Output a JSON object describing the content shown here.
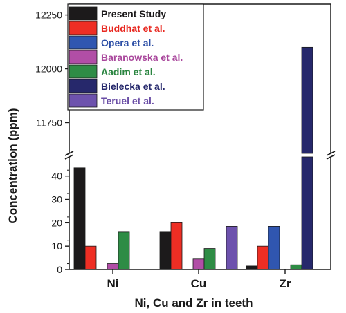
{
  "chart_data": {
    "type": "bar",
    "xlabel": "Ni, Cu and Zr in teeth",
    "ylabel": "Concentration (ppm)",
    "categories": [
      "Ni",
      "Cu",
      "Zr"
    ],
    "y_axis_break": {
      "lower_range": [
        0,
        47
      ],
      "upper_range": [
        11620,
        12300
      ],
      "lower_ticks": [
        0,
        10,
        20,
        30,
        40
      ],
      "upper_ticks": [
        11750,
        12000,
        12250
      ]
    },
    "legend_position": "top-center",
    "grid": false,
    "series": [
      {
        "name": "Present Study",
        "color": "#1c1a1b",
        "text_color": "#1c1a1b",
        "values": [
          43.5,
          16,
          1.5
        ]
      },
      {
        "name": "Buddhat et al.",
        "color": "#ee2e24",
        "text_color": "#e8271f",
        "values": [
          10,
          20,
          10
        ]
      },
      {
        "name": "Opera et al.",
        "color": "#3056b0",
        "text_color": "#2d4fa6",
        "values": [
          null,
          null,
          18.5
        ]
      },
      {
        "name": "Baranowska et al.",
        "color": "#b14ea6",
        "text_color": "#a9479c",
        "values": [
          2.5,
          4.5,
          null
        ]
      },
      {
        "name": "Aadim et al.",
        "color": "#2e8c45",
        "text_color": "#2a8540",
        "values": [
          16,
          9,
          2
        ]
      },
      {
        "name": "Bielecka et al.",
        "color": "#26286b",
        "text_color": "#23266a",
        "values": [
          null,
          null,
          12100
        ]
      },
      {
        "name": "Teruel et al.",
        "color": "#6d52ad",
        "text_color": "#6a4ea6",
        "values": [
          null,
          18.5,
          null
        ]
      }
    ]
  }
}
